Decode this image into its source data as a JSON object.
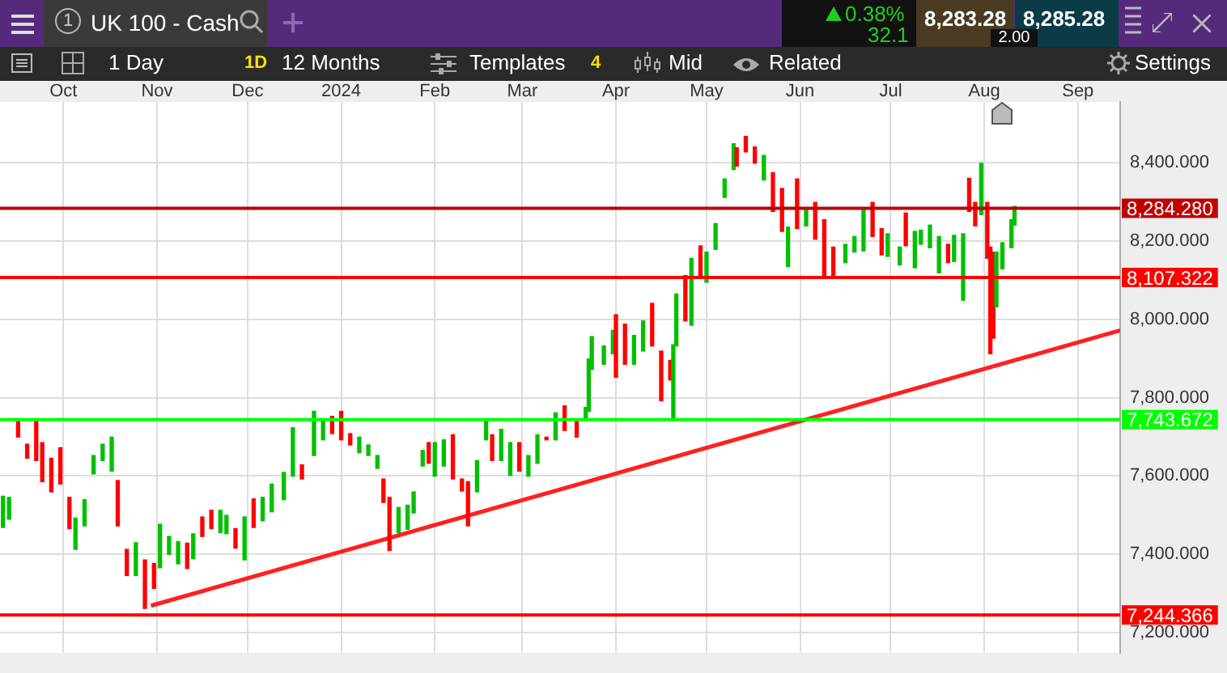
{
  "chart_data": {
    "type": "candlestick",
    "annotations": [
      "1",
      "UK 100 - Cash",
      "0.38%",
      "32.1",
      "8,283.28",
      "8,285.28",
      "2.00",
      "1 Day",
      "1D",
      "12 Months",
      "Templates",
      "4",
      "Mid",
      "Related",
      "Settings"
    ],
    "x": [
      "2023-09-11",
      "2023-09-13",
      "2023-09-16",
      "2023-09-19",
      "2023-09-22",
      "2023-09-24",
      "2023-09-27",
      "2023-09-30",
      "2023-10-03",
      "2023-10-05",
      "2023-10-08",
      "2023-10-11",
      "2023-10-14",
      "2023-10-17",
      "2023-10-19",
      "2023-10-22",
      "2023-10-25",
      "2023-10-28",
      "2023-10-31",
      "2023-11-02",
      "2023-11-05",
      "2023-11-08",
      "2023-11-11",
      "2023-11-13",
      "2023-11-16",
      "2023-11-19",
      "2023-11-22",
      "2023-11-24",
      "2023-11-27",
      "2023-11-30",
      "2023-12-03",
      "2023-12-06",
      "2023-12-09",
      "2023-12-13",
      "2023-12-16",
      "2023-12-19",
      "2023-12-23",
      "2023-12-26",
      "2023-12-29",
      "2024-01-01",
      "2024-01-04",
      "2024-01-07",
      "2024-01-10",
      "2024-01-13",
      "2024-01-15",
      "2024-01-17",
      "2024-01-20",
      "2024-01-23",
      "2024-01-25",
      "2024-01-28",
      "2024-01-30",
      "2024-02-01",
      "2024-02-04",
      "2024-02-07",
      "2024-02-10",
      "2024-02-12",
      "2024-02-15",
      "2024-02-18",
      "2024-02-20",
      "2024-02-23",
      "2024-02-26",
      "2024-02-29",
      "2024-03-03",
      "2024-03-06",
      "2024-03-09",
      "2024-03-12",
      "2024-03-15",
      "2024-03-19",
      "2024-03-22",
      "2024-03-23",
      "2024-03-24",
      "2024-03-28",
      "2024-03-31",
      "2024-04-01",
      "2024-04-04",
      "2024-04-07",
      "2024-04-10",
      "2024-04-13",
      "2024-04-16",
      "2024-04-19",
      "2024-04-20",
      "2024-04-21",
      "2024-04-24",
      "2024-04-26",
      "2024-04-29",
      "2024-05-01",
      "2024-05-04",
      "2024-05-07",
      "2024-05-10",
      "2024-05-11",
      "2024-05-14",
      "2024-05-17",
      "2024-05-20",
      "2024-05-23",
      "2024-05-26",
      "2024-05-28",
      "2024-05-31",
      "2024-06-03",
      "2024-06-06",
      "2024-06-09",
      "2024-06-12",
      "2024-06-16",
      "2024-06-19",
      "2024-06-22",
      "2024-06-25",
      "2024-06-28",
      "2024-06-30",
      "2024-07-04",
      "2024-07-06",
      "2024-07-09",
      "2024-07-11",
      "2024-07-14",
      "2024-07-17",
      "2024-07-20",
      "2024-07-22",
      "2024-07-25",
      "2024-07-27",
      "2024-07-29",
      "2024-07-31",
      "2024-08-02",
      "2024-08-03",
      "2024-08-04",
      "2024-08-05",
      "2024-08-07",
      "2024-08-10",
      "2024-08-11"
    ],
    "ohlc": [
      [
        7468,
        7548,
        7468,
        7548
      ],
      [
        7489,
        7545,
        7489,
        7545
      ],
      [
        7739,
        7739,
        7699,
        7699
      ],
      [
        7681,
        7681,
        7645,
        7645
      ],
      [
        7739,
        7739,
        7639,
        7639
      ],
      [
        7685,
        7685,
        7585,
        7585
      ],
      [
        7645,
        7645,
        7559,
        7559
      ],
      [
        7672,
        7672,
        7579,
        7579
      ],
      [
        7545,
        7545,
        7465,
        7465
      ],
      [
        7412,
        7492,
        7412,
        7492
      ],
      [
        7472,
        7539,
        7472,
        7539
      ],
      [
        7605,
        7652,
        7605,
        7652
      ],
      [
        7639,
        7681,
        7639,
        7681
      ],
      [
        7612,
        7699,
        7612,
        7699
      ],
      [
        7588,
        7588,
        7472,
        7472
      ],
      [
        7412,
        7412,
        7345,
        7345
      ],
      [
        7345,
        7429,
        7345,
        7429
      ],
      [
        7385,
        7385,
        7261,
        7261
      ],
      [
        7376,
        7376,
        7312,
        7312
      ],
      [
        7365,
        7476,
        7365,
        7476
      ],
      [
        7399,
        7445,
        7399,
        7445
      ],
      [
        7375,
        7432,
        7375,
        7432
      ],
      [
        7428,
        7428,
        7363,
        7363
      ],
      [
        7388,
        7452,
        7388,
        7452
      ],
      [
        7495,
        7495,
        7445,
        7445
      ],
      [
        7512,
        7512,
        7465,
        7465
      ],
      [
        7455,
        7512,
        7455,
        7512
      ],
      [
        7452,
        7499,
        7452,
        7499
      ],
      [
        7465,
        7465,
        7415,
        7415
      ],
      [
        7385,
        7495,
        7385,
        7495
      ],
      [
        7541,
        7541,
        7468,
        7468
      ],
      [
        7485,
        7545,
        7485,
        7545
      ],
      [
        7508,
        7579,
        7508,
        7579
      ],
      [
        7539,
        7609,
        7539,
        7609
      ],
      [
        7599,
        7723,
        7599,
        7723
      ],
      [
        7628,
        7628,
        7592,
        7592
      ],
      [
        7652,
        7765,
        7652,
        7765
      ],
      [
        7692,
        7745,
        7692,
        7745
      ],
      [
        7752,
        7752,
        7708,
        7708
      ],
      [
        7765,
        7765,
        7692,
        7692
      ],
      [
        7708,
        7708,
        7679,
        7679
      ],
      [
        7659,
        7699,
        7659,
        7699
      ],
      [
        7652,
        7679,
        7652,
        7679
      ],
      [
        7619,
        7652,
        7619,
        7652
      ],
      [
        7592,
        7592,
        7532,
        7532
      ],
      [
        7545,
        7545,
        7409,
        7409
      ],
      [
        7455,
        7519,
        7455,
        7519
      ],
      [
        7463,
        7525,
        7463,
        7525
      ],
      [
        7505,
        7559,
        7505,
        7559
      ],
      [
        7625,
        7665,
        7625,
        7665
      ],
      [
        7685,
        7685,
        7632,
        7632
      ],
      [
        7599,
        7685,
        7599,
        7685
      ],
      [
        7625,
        7692,
        7625,
        7692
      ],
      [
        7705,
        7705,
        7592,
        7592
      ],
      [
        7592,
        7592,
        7561,
        7561
      ],
      [
        7585,
        7585,
        7472,
        7472
      ],
      [
        7559,
        7639,
        7559,
        7639
      ],
      [
        7692,
        7743,
        7692,
        7743
      ],
      [
        7705,
        7705,
        7639,
        7639
      ],
      [
        7639,
        7719,
        7639,
        7719
      ],
      [
        7601,
        7685,
        7601,
        7685
      ],
      [
        7685,
        7685,
        7612,
        7612
      ],
      [
        7599,
        7652,
        7599,
        7652
      ],
      [
        7632,
        7705,
        7632,
        7705
      ],
      [
        7699,
        7699,
        7692,
        7692
      ],
      [
        7692,
        7761,
        7692,
        7761
      ],
      [
        7779,
        7779,
        7716,
        7716
      ],
      [
        7739,
        7739,
        7699,
        7699
      ],
      [
        7748,
        7775,
        7748,
        7775
      ],
      [
        7765,
        7899,
        7765,
        7899
      ],
      [
        7872,
        7956,
        7872,
        7956
      ],
      [
        7885,
        7932,
        7885,
        7932
      ],
      [
        7912,
        7972,
        7912,
        7972
      ],
      [
        8012,
        8012,
        7852,
        7852
      ],
      [
        7988,
        7988,
        7885,
        7885
      ],
      [
        7885,
        7959,
        7885,
        7959
      ],
      [
        7919,
        7996,
        7919,
        7996
      ],
      [
        8041,
        8041,
        7932,
        7932
      ],
      [
        7919,
        7919,
        7792,
        7792
      ],
      [
        7895,
        7895,
        7845,
        7845
      ],
      [
        7745,
        7935,
        7745,
        7935
      ],
      [
        7932,
        8065,
        7932,
        8065
      ],
      [
        8112,
        8112,
        7996,
        7996
      ],
      [
        7985,
        8156,
        7985,
        8156
      ],
      [
        8188,
        8188,
        8105,
        8105
      ],
      [
        8095,
        8172,
        8095,
        8172
      ],
      [
        8179,
        8245,
        8179,
        8245
      ],
      [
        8312,
        8359,
        8312,
        8359
      ],
      [
        8383,
        8449,
        8383,
        8449
      ],
      [
        8439,
        8439,
        8392,
        8392
      ],
      [
        8468,
        8468,
        8428,
        8428
      ],
      [
        8441,
        8441,
        8399,
        8399
      ],
      [
        8356,
        8419,
        8356,
        8419
      ],
      [
        8375,
        8375,
        8276,
        8276
      ],
      [
        8335,
        8335,
        8225,
        8225
      ],
      [
        8135,
        8236,
        8135,
        8236
      ],
      [
        8359,
        8359,
        8232,
        8232
      ],
      [
        8239,
        8285,
        8239,
        8285
      ],
      [
        8299,
        8299,
        8205,
        8205
      ],
      [
        8255,
        8255,
        8112,
        8112
      ],
      [
        8185,
        8185,
        8112,
        8112
      ],
      [
        8145,
        8192,
        8145,
        8192
      ],
      [
        8172,
        8212,
        8172,
        8212
      ],
      [
        8175,
        8281,
        8175,
        8281
      ],
      [
        8299,
        8299,
        8212,
        8212
      ],
      [
        8232,
        8232,
        8165,
        8165
      ],
      [
        8161,
        8219,
        8161,
        8219
      ],
      [
        8139,
        8185,
        8139,
        8185
      ],
      [
        8272,
        8272,
        8188,
        8188
      ],
      [
        8132,
        8225,
        8132,
        8225
      ],
      [
        8192,
        8228,
        8192,
        8228
      ],
      [
        8183,
        8241,
        8183,
        8241
      ],
      [
        8119,
        8212,
        8119,
        8212
      ],
      [
        8192,
        8192,
        8145,
        8145
      ],
      [
        8148,
        8215,
        8148,
        8215
      ],
      [
        8049,
        8219,
        8049,
        8219
      ],
      [
        8361,
        8361,
        8276,
        8276
      ],
      [
        8299,
        8299,
        8239,
        8239
      ],
      [
        8268,
        8399,
        8268,
        8399
      ],
      [
        8299,
        8299,
        8156,
        8156
      ],
      [
        8185,
        8185,
        7912,
        7912
      ],
      [
        8172,
        8172,
        7952,
        7952
      ],
      [
        8032,
        8172,
        8032,
        8172
      ],
      [
        8129,
        8196,
        8129,
        8196
      ],
      [
        8183,
        8255,
        8183,
        8255
      ],
      [
        8241,
        8289,
        8241,
        8289
      ]
    ],
    "colors": [
      "#00c000",
      "#00c000",
      "#ff0000",
      "#ff0000",
      "#ff0000",
      "#ff0000",
      "#ff0000",
      "#ff0000",
      "#ff0000",
      "#00c000",
      "#00c000",
      "#00c000",
      "#00c000",
      "#00c000",
      "#ff0000",
      "#ff0000",
      "#00c000",
      "#ff0000",
      "#ff0000",
      "#00c000",
      "#00c000",
      "#00c000",
      "#ff0000",
      "#00c000",
      "#ff0000",
      "#ff0000",
      "#00c000",
      "#00c000",
      "#ff0000",
      "#00c000",
      "#ff0000",
      "#00c000",
      "#00c000",
      "#00c000",
      "#00c000",
      "#ff0000",
      "#00c000",
      "#00c000",
      "#ff0000",
      "#ff0000",
      "#ff0000",
      "#00c000",
      "#00c000",
      "#00c000",
      "#ff0000",
      "#ff0000",
      "#00c000",
      "#00c000",
      "#00c000",
      "#00c000",
      "#ff0000",
      "#00c000",
      "#00c000",
      "#ff0000",
      "#ff0000",
      "#ff0000",
      "#00c000",
      "#00c000",
      "#ff0000",
      "#00c000",
      "#00c000",
      "#ff0000",
      "#00c000",
      "#00c000",
      "#ff0000",
      "#00c000",
      "#ff0000",
      "#ff0000",
      "#00c000",
      "#00c000",
      "#00c000",
      "#00c000",
      "#00c000",
      "#ff0000",
      "#ff0000",
      "#00c000",
      "#00c000",
      "#ff0000",
      "#ff0000",
      "#ff0000",
      "#00c000",
      "#00c000",
      "#ff0000",
      "#00c000",
      "#ff0000",
      "#00c000",
      "#00c000",
      "#00c000",
      "#00c000",
      "#ff0000",
      "#ff0000",
      "#ff0000",
      "#00c000",
      "#ff0000",
      "#ff0000",
      "#00c000",
      "#ff0000",
      "#00c000",
      "#ff0000",
      "#ff0000",
      "#ff0000",
      "#00c000",
      "#00c000",
      "#00c000",
      "#ff0000",
      "#ff0000",
      "#00c000",
      "#00c000",
      "#ff0000",
      "#00c000",
      "#00c000",
      "#00c000",
      "#00c000",
      "#ff0000",
      "#00c000",
      "#00c000",
      "#ff0000",
      "#ff0000",
      "#00c000",
      "#ff0000",
      "#ff0000",
      "#ff0000",
      "#00c000",
      "#00c000",
      "#00c000",
      "#00c000"
    ],
    "series": [
      {
        "type": "line",
        "color": "#ff2020",
        "x": [
          "2023-10-30",
          "2024-09-15"
        ],
        "values": [
          7268,
          7972
        ]
      }
    ],
    "ref_lines": [
      {
        "axis": "y",
        "value": 8284.28,
        "label": "8,284.280",
        "color": "#c00000"
      },
      {
        "axis": "y",
        "value": 8107.322,
        "label": "8,107.322",
        "color": "#ff0000"
      },
      {
        "axis": "y",
        "value": 7743.672,
        "label": "7,743.672",
        "color": "#00ff00"
      },
      {
        "axis": "y",
        "value": 7244.366,
        "label": "7,244.366",
        "color": "#ff0000"
      }
    ],
    "xlim": [
      "2023-09-10",
      "2024-09-15"
    ],
    "xticks": [
      {
        "value": "2023-10-01",
        "label": "Oct"
      },
      {
        "value": "2023-11-01",
        "label": "Nov"
      },
      {
        "value": "2023-12-01",
        "label": "Dec"
      },
      {
        "value": "2024-01-01",
        "label": "2024"
      },
      {
        "value": "2024-02-01",
        "label": "Feb"
      },
      {
        "value": "2024-03-01",
        "label": "Mar"
      },
      {
        "value": "2024-04-01",
        "label": "Apr"
      },
      {
        "value": "2024-05-01",
        "label": "May"
      },
      {
        "value": "2024-06-01",
        "label": "Jun"
      },
      {
        "value": "2024-07-01",
        "label": "Jul"
      },
      {
        "value": "2024-08-01",
        "label": "Aug"
      },
      {
        "value": "2024-09-01",
        "label": "Sep"
      }
    ],
    "ylim": [
      7148,
      8556
    ],
    "yticks": [
      {
        "value": 7200,
        "label": "7,200.000"
      },
      {
        "value": 7400,
        "label": "7,400.000"
      },
      {
        "value": 7600,
        "label": "7,600.000"
      },
      {
        "value": 7800,
        "label": "7,800.000"
      },
      {
        "value": 8000,
        "label": "8,000.000"
      },
      {
        "value": 8200,
        "label": "8,200.000"
      },
      {
        "value": 8400,
        "label": "8,400.000"
      }
    ],
    "grid": true
  }
}
